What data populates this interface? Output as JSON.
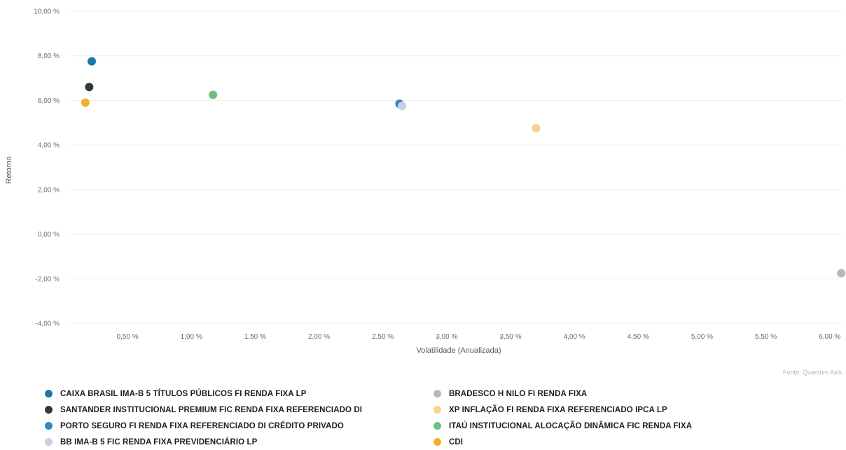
{
  "chart_data": {
    "type": "scatter",
    "title": "",
    "xlabel": "Volatilidade (Anualizada)",
    "ylabel": "Retorno",
    "xlim": [
      0.05,
      6.1
    ],
    "ylim": [
      -4.0,
      10.0
    ],
    "x_ticks": [
      0.5,
      1.0,
      1.5,
      2.0,
      2.5,
      3.0,
      3.5,
      4.0,
      4.5,
      5.0,
      5.5,
      6.0
    ],
    "x_tick_labels": [
      "0,50 %",
      "1,00 %",
      "1,50 %",
      "2,00 %",
      "2,50 %",
      "3,00 %",
      "3,50 %",
      "4,00 %",
      "4,50 %",
      "5,00 %",
      "5,50 %",
      "6,00 %"
    ],
    "y_ticks": [
      -4,
      -2,
      0,
      2,
      4,
      6,
      8,
      10
    ],
    "y_tick_labels": [
      "-4,00 %",
      "-2,00 %",
      "0,00 %",
      "2,00 %",
      "4,00 %",
      "6,00 %",
      "8,00 %",
      "10,00 %"
    ],
    "grid": "horizontal",
    "legend_position": "bottom",
    "series": [
      {
        "name": "CAIXA BRASIL IMA-B 5 TÍTULOS PÚBLICOS FI RENDA FIXA LP",
        "color": "#1f74a8",
        "x": 0.22,
        "y": 7.75
      },
      {
        "name": "SANTANDER INSTITUCIONAL PREMIUM FIC RENDA FIXA REFERENCIADO DI",
        "color": "#2b3d3a",
        "x": 0.2,
        "y": 6.6
      },
      {
        "name": "PORTO SEGURO FI RENDA FIXA REFERENCIADO DI CRÉDITO PRIVADO",
        "color": "#2a8cc4",
        "x": 2.63,
        "y": 5.85
      },
      {
        "name": "BB IMA-B 5 FIC RENDA FIXA PREVIDENCIÁRIO LP",
        "color": "#c9cde6",
        "x": 2.65,
        "y": 5.75
      },
      {
        "name": "BRADESCO H NILO FI RENDA FIXA",
        "color": "#b8b8b8",
        "x": 6.09,
        "y": -1.75
      },
      {
        "name": "XP INFLAÇÃO FI RENDA FIXA REFERENCIADO IPCA LP",
        "color": "#f5d58c",
        "x": 3.7,
        "y": 4.75
      },
      {
        "name": "ITAÚ INSTITUCIONAL ALOCAÇÃO DINÂMICA FIC RENDA FIXA",
        "color": "#6cbf7f",
        "x": 1.17,
        "y": 6.25
      },
      {
        "name": "CDI",
        "color": "#f6b02f",
        "x": 0.17,
        "y": 5.9
      }
    ]
  },
  "source_text": "Fonte: Quantum Axis"
}
